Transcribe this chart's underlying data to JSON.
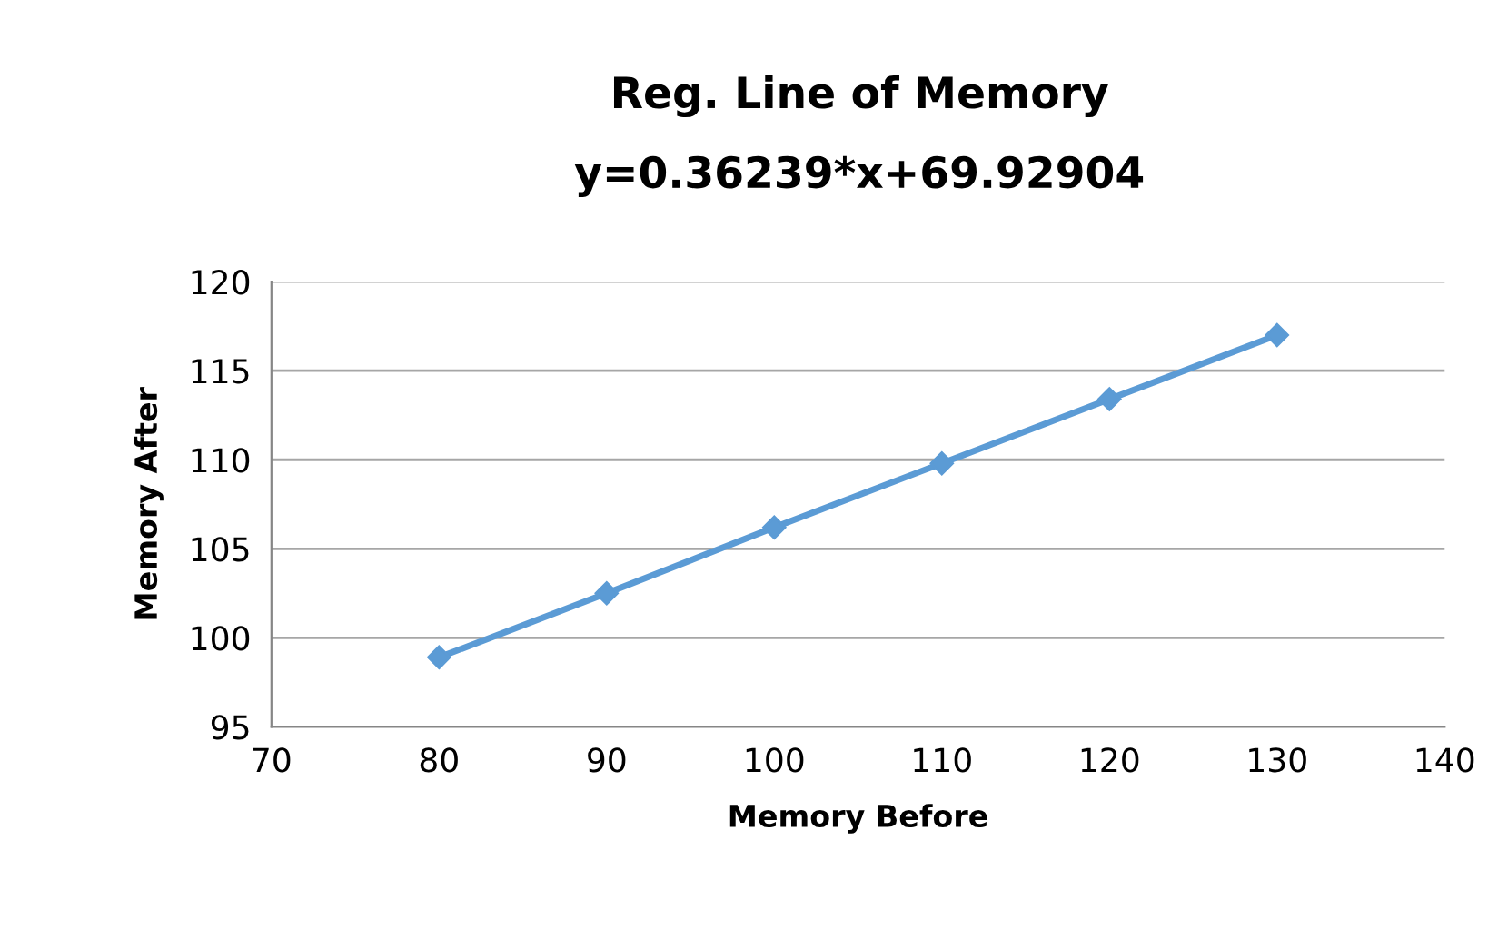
{
  "chart_data": {
    "type": "line",
    "title": "Reg. Line of Memory",
    "subtitle": "y=0.36239*x+69.92904",
    "xlabel": "Memory Before",
    "ylabel": "Memory After",
    "x": [
      80,
      90,
      100,
      110,
      120,
      130
    ],
    "series": [
      {
        "color": "#5b9bd5",
        "values": [
          98.9,
          102.5,
          106.2,
          109.8,
          113.4,
          117.0
        ]
      }
    ],
    "xlim": [
      70,
      140
    ],
    "xticks": [
      70,
      80,
      90,
      100,
      110,
      120,
      130,
      140
    ],
    "ylim": [
      95,
      120
    ],
    "yticks": [
      95,
      100,
      105,
      110,
      115,
      120
    ],
    "grid": "y",
    "marker": "diamond",
    "line_style": "solid",
    "legend": false
  }
}
